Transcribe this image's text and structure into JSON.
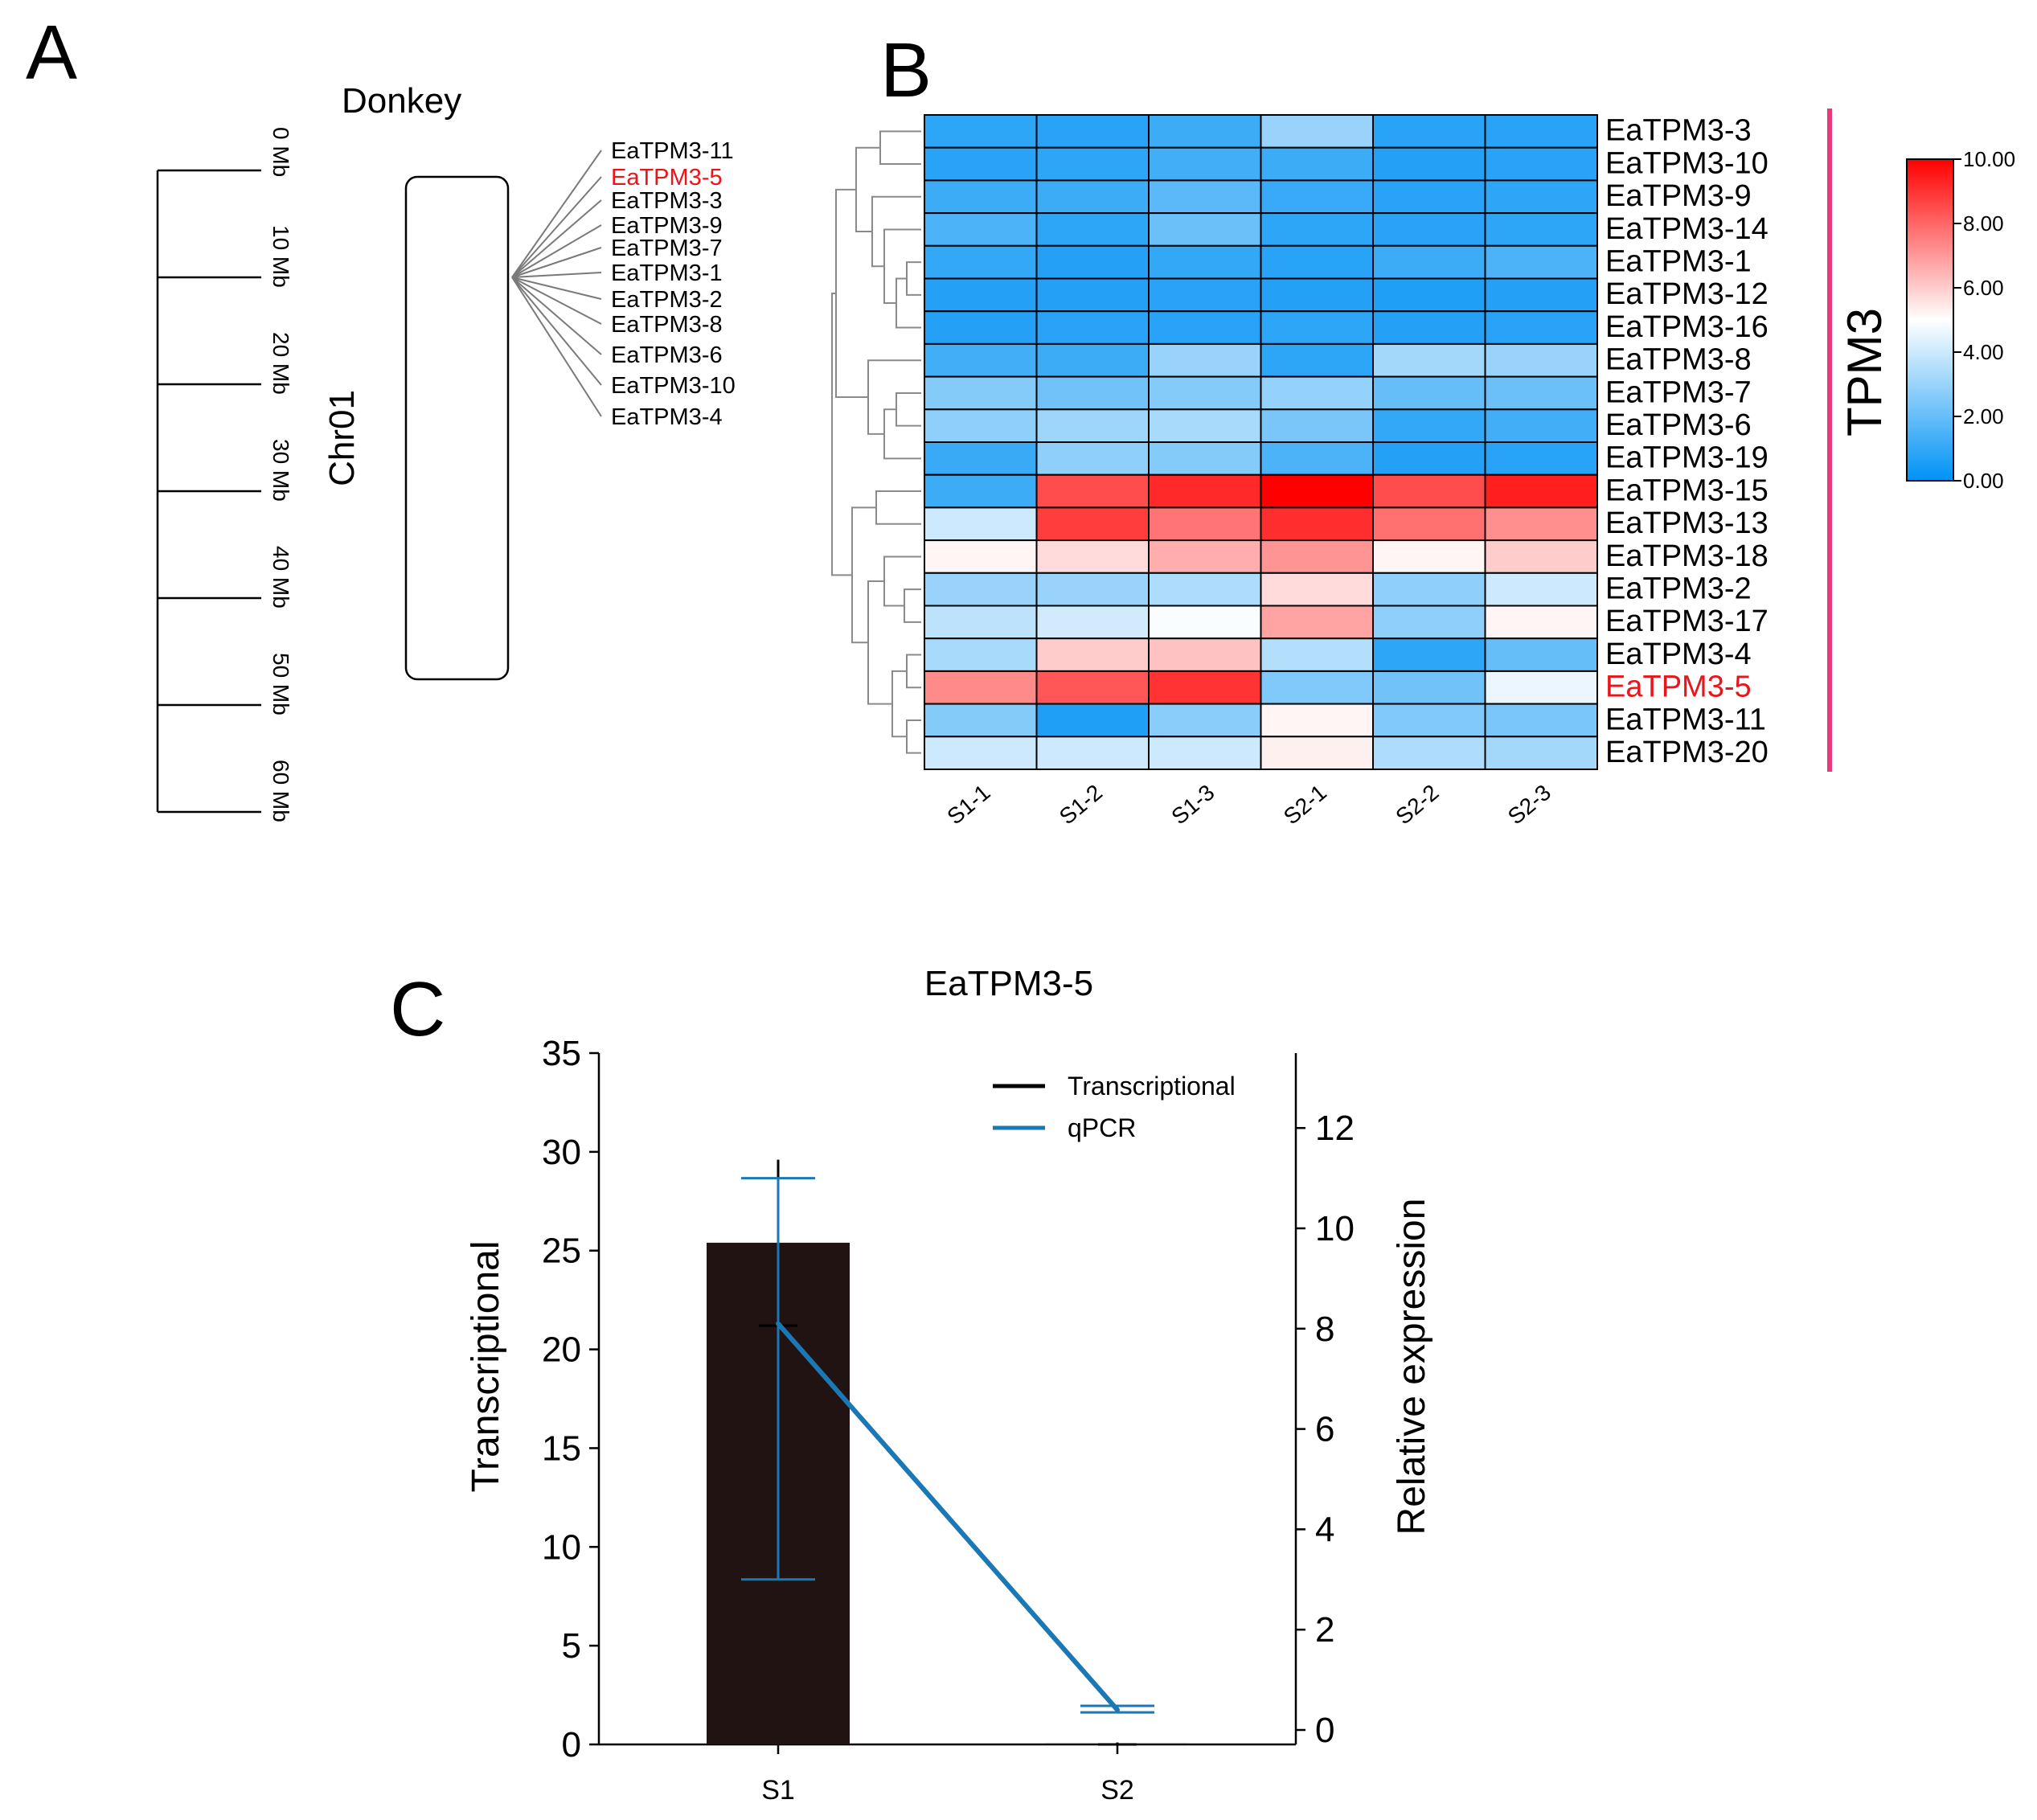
{
  "panels": {
    "A": {
      "label": "A",
      "species": "Donkey",
      "chromosome": "Chr01",
      "scale_ticks": [
        "0 Mb",
        "10 Mb",
        "20 Mb",
        "30 Mb",
        "40 Mb",
        "50 Mb",
        "60 Mb"
      ],
      "genes": [
        "EaTPM3-11",
        "EaTPM3-5",
        "EaTPM3-3",
        "EaTPM3-9",
        "EaTPM3-7",
        "EaTPM3-1",
        "EaTPM3-2",
        "EaTPM3-8",
        "EaTPM3-6",
        "EaTPM3-10",
        "EaTPM3-4"
      ],
      "highlight_gene": "EaTPM3-5",
      "highlight_color": "#e8161b"
    },
    "B": {
      "label": "B",
      "group_label": "TPM3",
      "group_bar_color": "#e8397d",
      "legend_ticks": [
        "10.00",
        "8.00",
        "6.00",
        "4.00",
        "2.00",
        "0.00"
      ]
    },
    "C": {
      "label": "C",
      "title": "EaTPM3-5",
      "ylabel_left": "Transcriptional",
      "ylabel_right": "Relative expression",
      "legend": {
        "transcriptional": "Transcriptional",
        "qpcr": "qPCR"
      },
      "colors": {
        "bar": "#211312",
        "qpcr": "#1a78b4",
        "transcriptional_legend": "#000000"
      }
    }
  },
  "chart_data": [
    {
      "type": "heatmap",
      "panel": "B",
      "columns": [
        "S1-1",
        "S1-2",
        "S1-3",
        "S2-1",
        "S2-2",
        "S2-3"
      ],
      "rows": [
        "EaTPM3-3",
        "EaTPM3-10",
        "EaTPM3-9",
        "EaTPM3-14",
        "EaTPM3-1",
        "EaTPM3-12",
        "EaTPM3-16",
        "EaTPM3-8",
        "EaTPM3-7",
        "EaTPM3-6",
        "EaTPM3-19",
        "EaTPM3-15",
        "EaTPM3-13",
        "EaTPM3-18",
        "EaTPM3-2",
        "EaTPM3-17",
        "EaTPM3-4",
        "EaTPM3-5",
        "EaTPM3-11",
        "EaTPM3-20"
      ],
      "values": [
        [
          0.9,
          0.8,
          1.2,
          3.0,
          0.8,
          0.8
        ],
        [
          0.8,
          0.9,
          1.3,
          1.2,
          0.7,
          0.8
        ],
        [
          1.2,
          1.2,
          1.8,
          1.1,
          0.8,
          0.9
        ],
        [
          1.5,
          0.9,
          2.1,
          0.9,
          0.8,
          0.9
        ],
        [
          1.0,
          0.7,
          1.0,
          0.8,
          1.2,
          1.5
        ],
        [
          0.7,
          0.7,
          0.8,
          0.7,
          0.6,
          0.7
        ],
        [
          0.7,
          0.8,
          0.8,
          0.9,
          0.7,
          0.8
        ],
        [
          1.3,
          1.2,
          3.0,
          0.9,
          3.2,
          3.0
        ],
        [
          2.6,
          2.2,
          2.6,
          2.9,
          2.0,
          2.1
        ],
        [
          2.8,
          3.1,
          3.3,
          2.4,
          1.0,
          1.3
        ],
        [
          1.1,
          2.8,
          2.6,
          1.5,
          0.7,
          0.8
        ],
        [
          1.2,
          8.5,
          9.2,
          10.0,
          8.5,
          9.4
        ],
        [
          4.0,
          8.8,
          7.7,
          9.1,
          7.8,
          7.2
        ],
        [
          5.2,
          5.7,
          6.6,
          7.1,
          5.2,
          6.0
        ],
        [
          3.0,
          3.0,
          3.4,
          5.7,
          2.8,
          4.0
        ],
        [
          3.7,
          4.1,
          4.9,
          6.8,
          2.8,
          5.2
        ],
        [
          3.3,
          6.0,
          6.2,
          3.5,
          0.9,
          2.0
        ],
        [
          7.3,
          8.3,
          9.0,
          2.5,
          2.2,
          4.6
        ],
        [
          2.6,
          0.6,
          2.7,
          5.2,
          2.5,
          2.4
        ],
        [
          4.0,
          4.0,
          4.0,
          5.3,
          3.4,
          3.2
        ]
      ],
      "highlight_row": "EaTPM3-5",
      "color_range": [
        0,
        10
      ],
      "colors": {
        "low": "#0092f5",
        "mid": "#ffffff",
        "high": "#ff0000"
      }
    },
    {
      "type": "bar",
      "panel": "C",
      "title": "EaTPM3-5",
      "categories": [
        "S1",
        "S2"
      ],
      "series": [
        {
          "name": "Transcriptional",
          "axis": "left",
          "kind": "bar",
          "values": [
            25.4,
            0.05
          ],
          "errors": [
            4.2,
            0.05
          ]
        },
        {
          "name": "qPCR",
          "axis": "right",
          "kind": "line",
          "values": [
            8.1,
            0.4
          ],
          "err_low": [
            3.0,
            0.35
          ],
          "err_high": [
            11.0,
            0.48
          ]
        }
      ],
      "ylabel": "Transcriptional",
      "ylabel_right": "Relative expression",
      "ylim": [
        0,
        35
      ],
      "ylim_right": [
        0,
        13
      ],
      "yticks": [
        0,
        5,
        10,
        15,
        20,
        25,
        30,
        35
      ],
      "yticks_right": [
        0,
        2,
        4,
        6,
        8,
        10,
        12
      ]
    }
  ]
}
